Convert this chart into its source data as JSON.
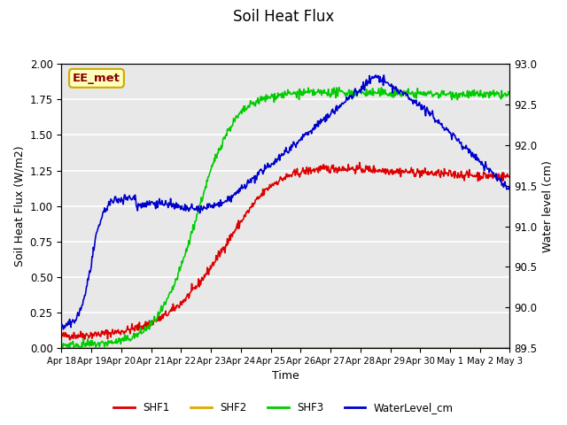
{
  "title": "Soil Heat Flux",
  "xlabel": "Time",
  "ylabel_left": "Soil Heat Flux (W/m2)",
  "ylabel_right": "Water level (cm)",
  "annotation": "EE_met",
  "ylim_left": [
    0.0,
    2.0
  ],
  "ylim_right": [
    89.5,
    93.0
  ],
  "background_color": "#e8e8e8",
  "grid_color": "#ffffff",
  "colors": {
    "SHF1": "#dd0000",
    "SHF2": "#ddaa00",
    "SHF3": "#00cc00",
    "WaterLevel_cm": "#0000cc"
  },
  "xtick_labels": [
    "Apr 18",
    "Apr 19",
    "Apr 20",
    "Apr 21",
    "Apr 22",
    "Apr 23",
    "Apr 24",
    "Apr 25",
    "Apr 26",
    "Apr 27",
    "Apr 28",
    "Apr 29",
    "Apr 30",
    "May 1",
    "May 2",
    "May 3"
  ],
  "tick_positions": [
    0,
    1,
    2,
    3,
    4,
    5,
    6,
    7,
    8,
    9,
    10,
    11,
    12,
    13,
    14,
    15
  ]
}
